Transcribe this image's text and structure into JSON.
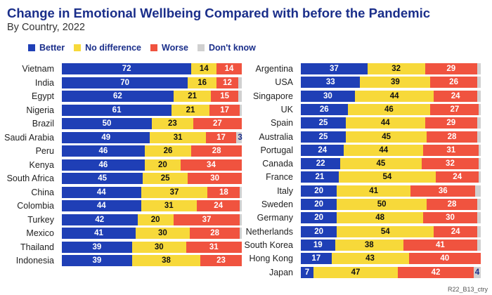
{
  "header": {
    "title": "Change in Emotional Wellbeing Compared with before the Pandemic",
    "subtitle": "By Country, 2022"
  },
  "colors": {
    "better": "#1f3fb6",
    "no_difference": "#f7d93a",
    "worse": "#f0533f",
    "dont_know": "#d0d0d0",
    "title": "#1a2e8a"
  },
  "footer": {
    "code": "R22_B13_ctry"
  },
  "chart_data": {
    "type": "bar",
    "orientation": "horizontal",
    "stacked": true,
    "title": "Change in Emotional Wellbeing Compared with before the Pandemic",
    "subtitle": "By Country, 2022",
    "legend": {
      "placement": "top-left",
      "entries": [
        "Better",
        "No difference",
        "Worse",
        "Don't know"
      ]
    },
    "series_keys": [
      "better",
      "no_difference",
      "worse",
      "dont_know"
    ],
    "panels": [
      {
        "rows": [
          {
            "country": "Vietnam",
            "better": 72,
            "no_difference": 14,
            "worse": 14,
            "dont_know": 0
          },
          {
            "country": "India",
            "better": 70,
            "no_difference": 16,
            "worse": 12,
            "dont_know": 2
          },
          {
            "country": "Egypt",
            "better": 62,
            "no_difference": 21,
            "worse": 15,
            "dont_know": 2
          },
          {
            "country": "Nigeria",
            "better": 61,
            "no_difference": 21,
            "worse": 17,
            "dont_know": 1
          },
          {
            "country": "Brazil",
            "better": 50,
            "no_difference": 23,
            "worse": 27,
            "dont_know": 0
          },
          {
            "country": "Saudi Arabia",
            "better": 49,
            "no_difference": 31,
            "worse": 17,
            "dont_know": 3
          },
          {
            "country": "Peru",
            "better": 46,
            "no_difference": 26,
            "worse": 28,
            "dont_know": 0
          },
          {
            "country": "Kenya",
            "better": 46,
            "no_difference": 20,
            "worse": 34,
            "dont_know": 0
          },
          {
            "country": "South Africa",
            "better": 45,
            "no_difference": 25,
            "worse": 30,
            "dont_know": 0
          },
          {
            "country": "China",
            "better": 44,
            "no_difference": 37,
            "worse": 18,
            "dont_know": 1
          },
          {
            "country": "Colombia",
            "better": 44,
            "no_difference": 31,
            "worse": 24,
            "dont_know": 1
          },
          {
            "country": "Turkey",
            "better": 42,
            "no_difference": 20,
            "worse": 37,
            "dont_know": 1
          },
          {
            "country": "Mexico",
            "better": 41,
            "no_difference": 30,
            "worse": 28,
            "dont_know": 1
          },
          {
            "country": "Thailand",
            "better": 39,
            "no_difference": 30,
            "worse": 31,
            "dont_know": 0
          },
          {
            "country": "Indonesia",
            "better": 39,
            "no_difference": 38,
            "worse": 23,
            "dont_know": 0
          }
        ]
      },
      {
        "rows": [
          {
            "country": "Argentina",
            "better": 37,
            "no_difference": 32,
            "worse": 29,
            "dont_know": 2
          },
          {
            "country": "USA",
            "better": 33,
            "no_difference": 39,
            "worse": 26,
            "dont_know": 2
          },
          {
            "country": "Singapore",
            "better": 30,
            "no_difference": 44,
            "worse": 24,
            "dont_know": 2
          },
          {
            "country": "UK",
            "better": 26,
            "no_difference": 46,
            "worse": 27,
            "dont_know": 1
          },
          {
            "country": "Spain",
            "better": 25,
            "no_difference": 44,
            "worse": 29,
            "dont_know": 2
          },
          {
            "country": "Australia",
            "better": 25,
            "no_difference": 45,
            "worse": 28,
            "dont_know": 2
          },
          {
            "country": "Portugal",
            "better": 24,
            "no_difference": 44,
            "worse": 31,
            "dont_know": 1
          },
          {
            "country": "Canada",
            "better": 22,
            "no_difference": 45,
            "worse": 32,
            "dont_know": 1
          },
          {
            "country": "France",
            "better": 21,
            "no_difference": 54,
            "worse": 24,
            "dont_know": 1
          },
          {
            "country": "Italy",
            "better": 20,
            "no_difference": 41,
            "worse": 36,
            "dont_know": 3
          },
          {
            "country": "Sweden",
            "better": 20,
            "no_difference": 50,
            "worse": 28,
            "dont_know": 2
          },
          {
            "country": "Germany",
            "better": 20,
            "no_difference": 48,
            "worse": 30,
            "dont_know": 2
          },
          {
            "country": "Netherlands",
            "better": 20,
            "no_difference": 54,
            "worse": 24,
            "dont_know": 2
          },
          {
            "country": "South Korea",
            "better": 19,
            "no_difference": 38,
            "worse": 41,
            "dont_know": 2
          },
          {
            "country": "Hong Kong",
            "better": 17,
            "no_difference": 43,
            "worse": 40,
            "dont_know": 0
          },
          {
            "country": "Japan",
            "better": 7,
            "no_difference": 47,
            "worse": 42,
            "dont_know": 4
          }
        ]
      }
    ],
    "labeled_dont_know": [
      {
        "country": "Saudi Arabia",
        "value": 3
      },
      {
        "country": "Japan",
        "value": 4
      }
    ]
  }
}
